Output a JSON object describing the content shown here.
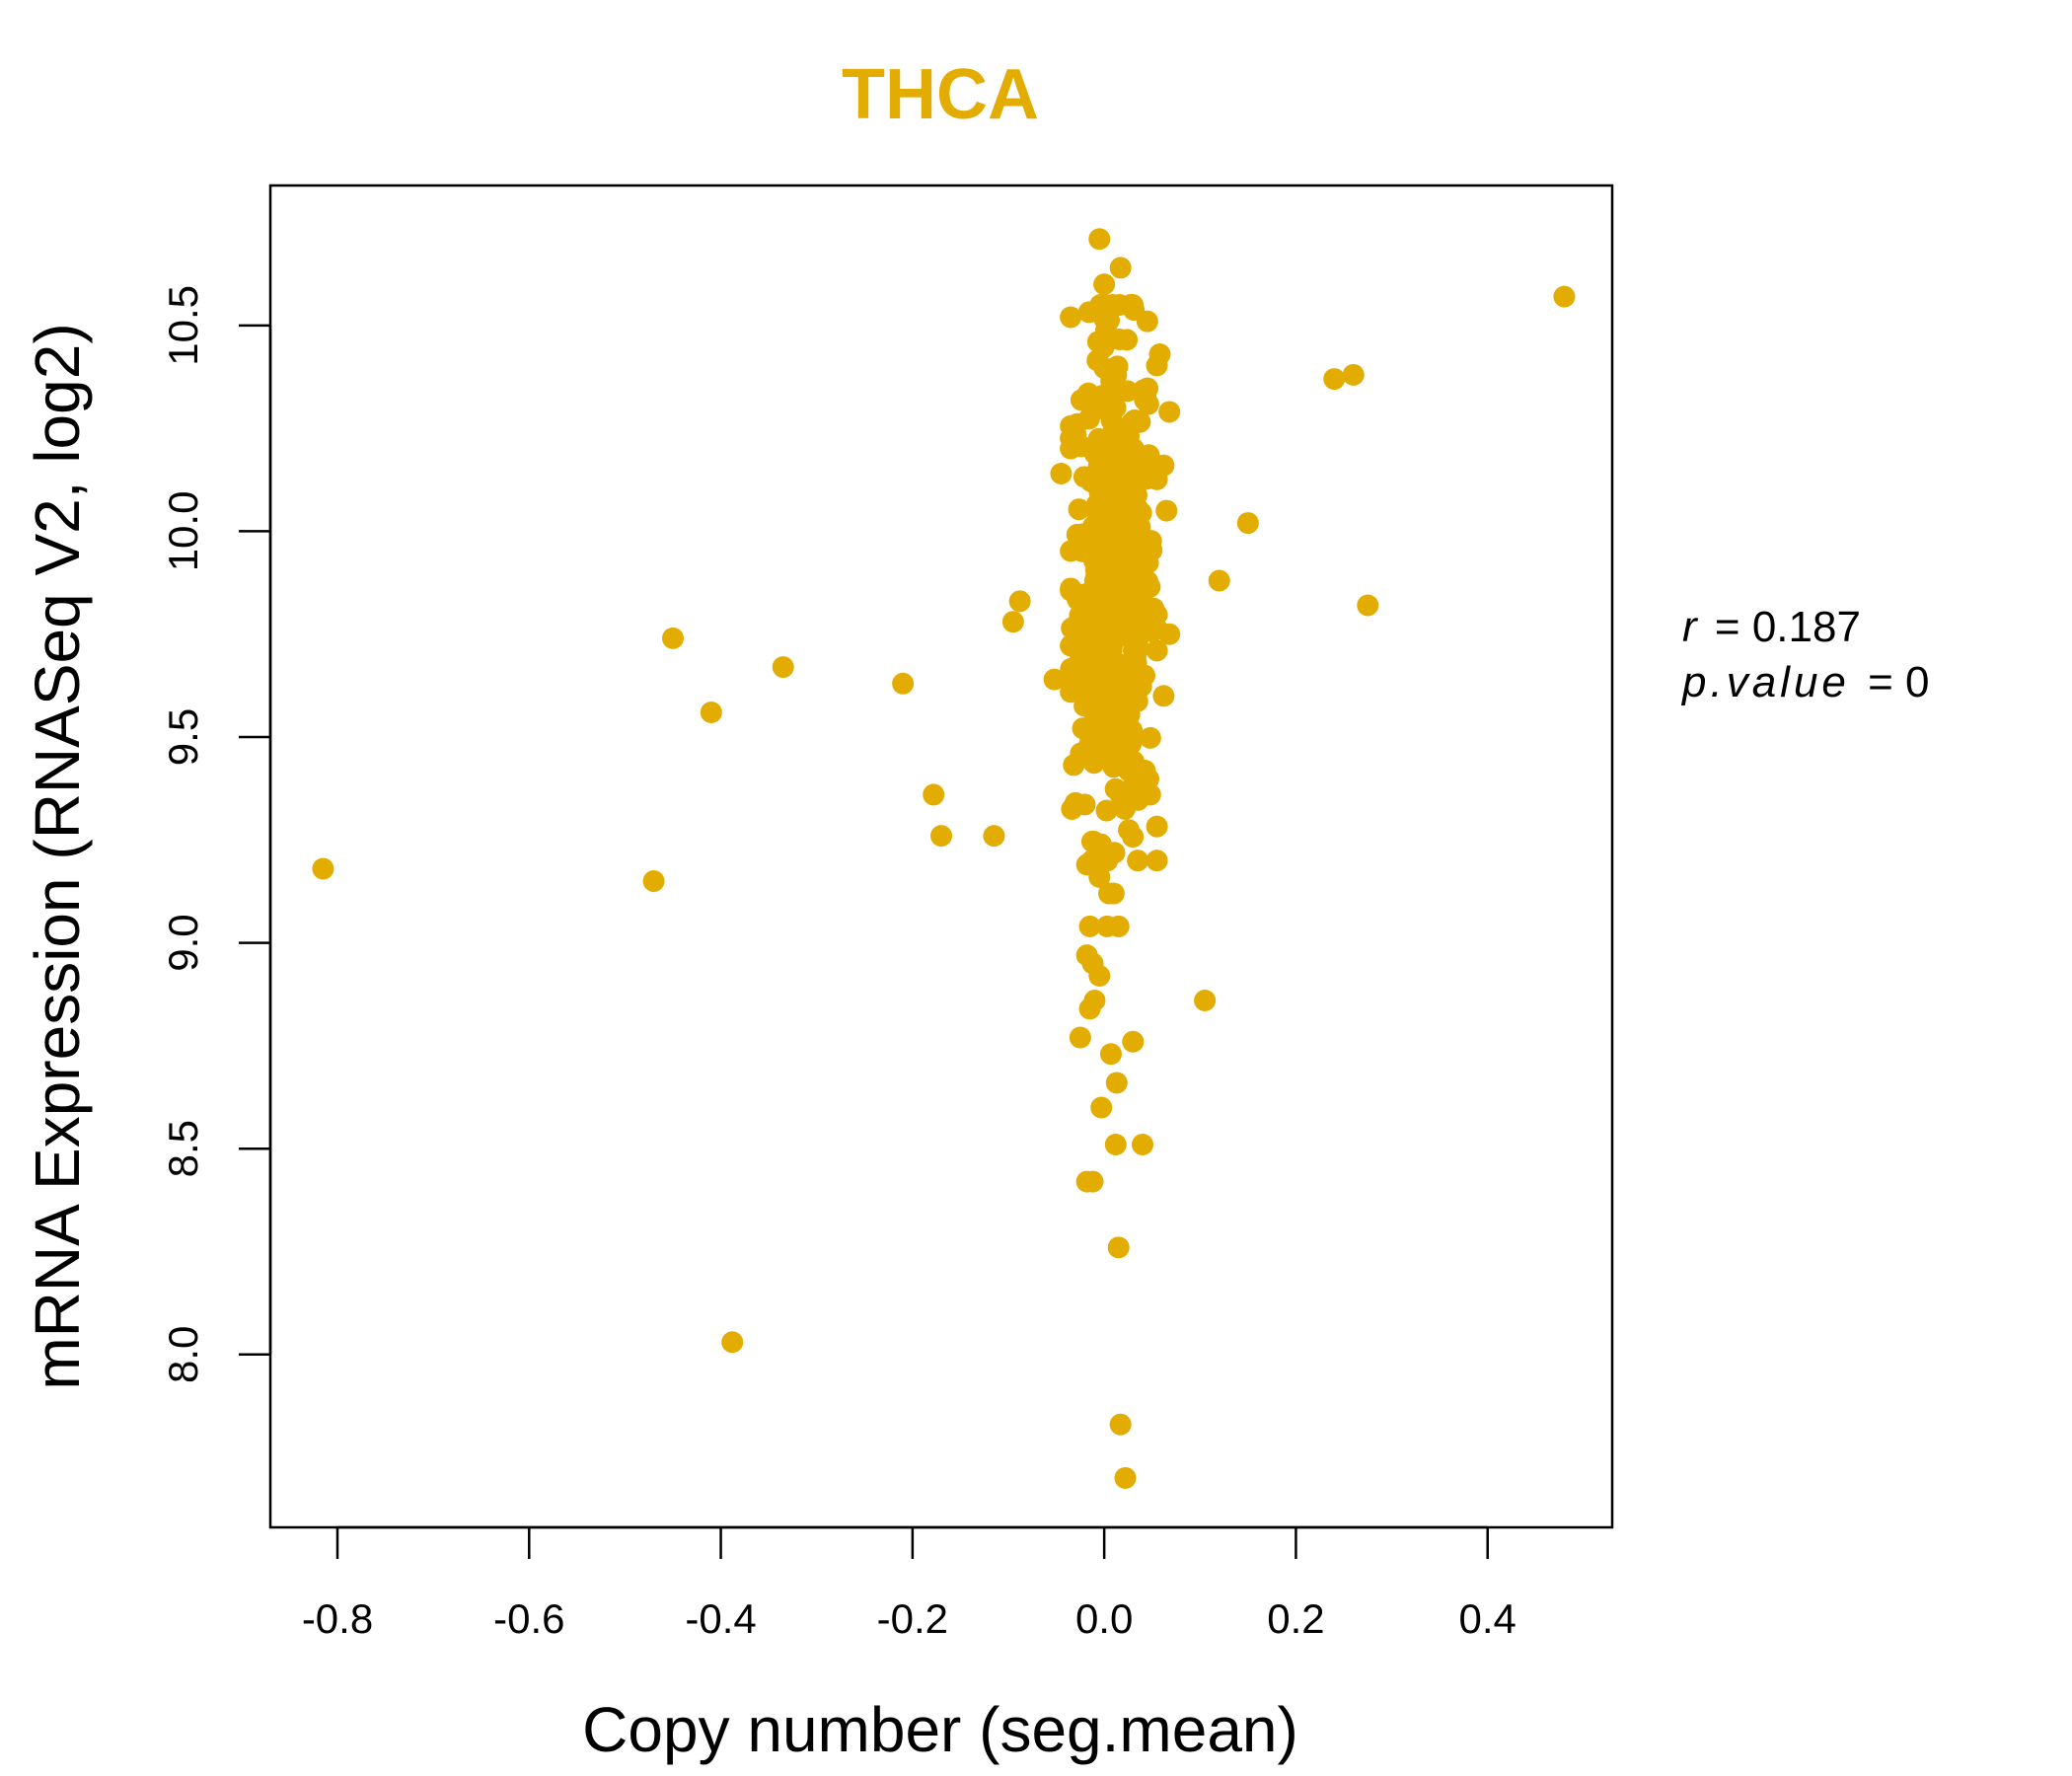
{
  "chart_data": {
    "type": "scatter",
    "title": "THCA",
    "xlabel": "Copy number (seg.mean)",
    "ylabel": "mRNA Expression (RNASeq V2, log2)",
    "xlim": [
      -0.87,
      0.53
    ],
    "ylim": [
      7.58,
      10.84
    ],
    "xticks": [
      -0.8,
      -0.6,
      -0.4,
      -0.2,
      0.0,
      0.2,
      0.4
    ],
    "xtick_labels": [
      "-0.8",
      "-0.6",
      "-0.4",
      "-0.2",
      "0.0",
      "0.2",
      "0.4"
    ],
    "yticks": [
      8.0,
      8.5,
      9.0,
      9.5,
      10.0,
      10.5
    ],
    "ytick_labels": [
      "8.0",
      "8.5",
      "9.0",
      "9.5",
      "10.0",
      "10.5"
    ],
    "grid": false,
    "point_color": "#E3AC00",
    "stats": {
      "r_label": "r",
      "r_value": "0.187",
      "p_label": "p.value",
      "p_value": "0"
    },
    "outliers": [
      {
        "x": -0.815,
        "y": 9.18
      },
      {
        "x": -0.47,
        "y": 9.15
      },
      {
        "x": -0.45,
        "y": 9.74
      },
      {
        "x": -0.41,
        "y": 9.56
      },
      {
        "x": -0.388,
        "y": 8.03
      },
      {
        "x": -0.335,
        "y": 9.67
      },
      {
        "x": -0.21,
        "y": 9.63
      },
      {
        "x": -0.178,
        "y": 9.36
      },
      {
        "x": -0.17,
        "y": 9.26
      },
      {
        "x": -0.115,
        "y": 9.26
      },
      {
        "x": -0.095,
        "y": 9.78
      },
      {
        "x": -0.088,
        "y": 9.83
      },
      {
        "x": -0.052,
        "y": 9.64
      },
      {
        "x": -0.045,
        "y": 10.14
      },
      {
        "x": -0.035,
        "y": 10.52
      },
      {
        "x": -0.03,
        "y": 9.77
      },
      {
        "x": 0.105,
        "y": 8.86
      },
      {
        "x": 0.12,
        "y": 9.88
      },
      {
        "x": 0.15,
        "y": 10.02
      },
      {
        "x": 0.24,
        "y": 10.37
      },
      {
        "x": 0.26,
        "y": 10.38
      },
      {
        "x": 0.275,
        "y": 9.82
      },
      {
        "x": 0.48,
        "y": 10.57
      },
      {
        "x": -0.005,
        "y": 10.71
      },
      {
        "x": 0.017,
        "y": 10.64
      },
      {
        "x": 0.0,
        "y": 10.6
      },
      {
        "x": 0.045,
        "y": 10.51
      },
      {
        "x": 0.058,
        "y": 10.43
      },
      {
        "x": 0.068,
        "y": 10.29
      },
      {
        "x": 0.062,
        "y": 10.16
      },
      {
        "x": 0.065,
        "y": 10.05
      },
      {
        "x": 0.068,
        "y": 9.75
      },
      {
        "x": 0.062,
        "y": 9.6
      },
      {
        "x": 0.048,
        "y": 9.36
      },
      {
        "x": 0.035,
        "y": 9.2
      },
      {
        "x": 0.03,
        "y": 8.76
      },
      {
        "x": 0.04,
        "y": 8.51
      },
      {
        "x": 0.012,
        "y": 8.51
      },
      {
        "x": 0.007,
        "y": 8.73
      },
      {
        "x": 0.013,
        "y": 8.66
      },
      {
        "x": -0.003,
        "y": 8.6
      },
      {
        "x": -0.018,
        "y": 8.42
      },
      {
        "x": -0.012,
        "y": 8.42
      },
      {
        "x": 0.015,
        "y": 8.26
      },
      {
        "x": 0.017,
        "y": 7.83
      },
      {
        "x": 0.022,
        "y": 7.7
      },
      {
        "x": -0.025,
        "y": 8.77
      },
      {
        "x": -0.015,
        "y": 8.84
      },
      {
        "x": -0.01,
        "y": 8.86
      },
      {
        "x": -0.005,
        "y": 8.92
      },
      {
        "x": -0.012,
        "y": 8.95
      },
      {
        "x": -0.018,
        "y": 8.97
      },
      {
        "x": -0.015,
        "y": 9.04
      },
      {
        "x": 0.003,
        "y": 9.04
      },
      {
        "x": 0.015,
        "y": 9.04
      },
      {
        "x": 0.005,
        "y": 9.12
      },
      {
        "x": 0.01,
        "y": 9.12
      },
      {
        "x": -0.005,
        "y": 9.16
      },
      {
        "x": -0.018,
        "y": 9.19
      },
      {
        "x": -0.03,
        "y": 9.34
      }
    ],
    "cluster": {
      "x_center": 0.01,
      "x_spread": 0.022,
      "y_center": 9.88,
      "y_spread": 0.3,
      "y_min": 9.2,
      "y_max": 10.55,
      "count": 420
    }
  }
}
